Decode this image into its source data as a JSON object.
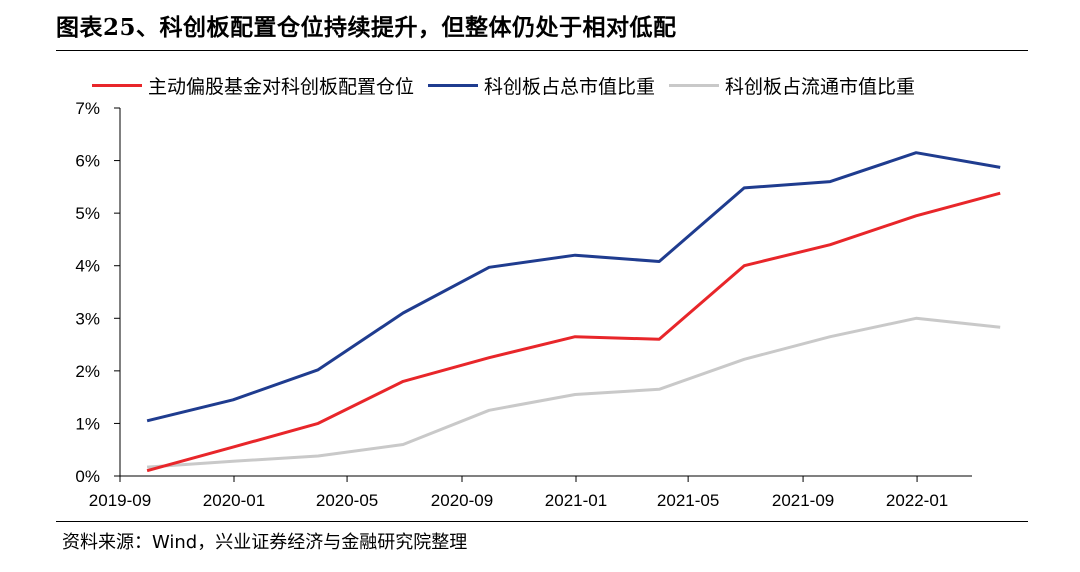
{
  "title": "图表25、科创板配置仓位持续提升，但整体仍处于相对低配",
  "source": "资料来源：Wind，兴业证券经济与金融研究院整理",
  "chart_data": {
    "type": "line",
    "y_ticks": [
      "0%",
      "1%",
      "2%",
      "3%",
      "4%",
      "5%",
      "6%",
      "7%"
    ],
    "ylim": [
      0,
      7
    ],
    "x_ticks": [
      "2019-09",
      "2020-01",
      "2020-05",
      "2020-09",
      "2021-01",
      "2021-05",
      "2021-09",
      "2022-01"
    ],
    "x_dates": [
      "2019-09-30",
      "2019-12-31",
      "2020-03-31",
      "2020-06-30",
      "2020-09-30",
      "2020-12-31",
      "2021-03-31",
      "2021-06-30",
      "2021-09-30",
      "2021-12-31",
      "2022-03-31"
    ],
    "series": [
      {
        "name": "主动偏股基金对科创板配置仓位",
        "color": "#e8262a",
        "values": [
          0.1,
          0.55,
          1.0,
          1.8,
          2.25,
          2.65,
          2.6,
          4.0,
          4.4,
          4.95,
          5.38
        ]
      },
      {
        "name": "科创板占总市值比重",
        "color": "#1f3c8f",
        "values": [
          1.05,
          1.45,
          2.02,
          3.1,
          3.97,
          4.2,
          4.08,
          5.48,
          5.6,
          6.15,
          5.87
        ]
      },
      {
        "name": "科创板占流通市值比重",
        "color": "#c9c9c9",
        "values": [
          0.17,
          0.28,
          0.38,
          0.6,
          1.25,
          1.55,
          1.65,
          2.22,
          2.65,
          3.0,
          2.83
        ]
      }
    ]
  }
}
